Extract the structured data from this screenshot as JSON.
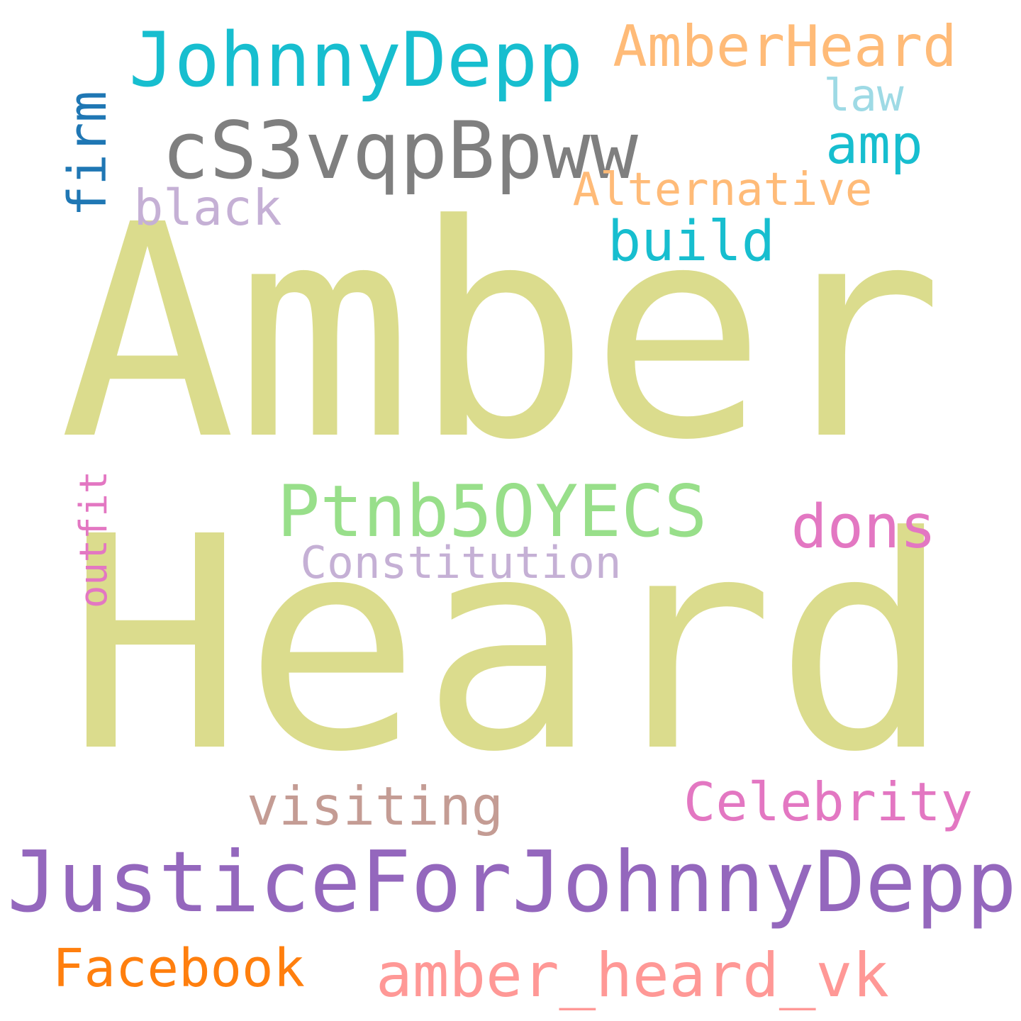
{
  "words": {
    "amber": {
      "text": "Amber",
      "color": "#dbdc8d"
    },
    "heard": {
      "text": "Heard",
      "color": "#dbdc8d"
    },
    "johnnydepp": {
      "text": "JohnnyDepp",
      "color": "#17becf"
    },
    "amberheard": {
      "text": "AmberHeard",
      "color": "#ffbb78"
    },
    "law": {
      "text": "law",
      "color": "#9edae5"
    },
    "code": {
      "text": "cS3vqpBpww",
      "color": "#7f7f7f"
    },
    "amp": {
      "text": "amp",
      "color": "#17becf"
    },
    "firm": {
      "text": "firm",
      "color": "#1f77b4"
    },
    "alternative": {
      "text": "Alternative",
      "color": "#ffbb78"
    },
    "black": {
      "text": "black",
      "color": "#c5b0d5"
    },
    "build": {
      "text": "build",
      "color": "#17becf"
    },
    "ptnb": {
      "text": "Ptnb5OYECS",
      "color": "#98df8a"
    },
    "dons": {
      "text": "dons",
      "color": "#e377c2"
    },
    "outfit": {
      "text": "outfit",
      "color": "#e377c2"
    },
    "constitution": {
      "text": "Constitution",
      "color": "#c5b0d5"
    },
    "visiting": {
      "text": "visiting",
      "color": "#c49c94"
    },
    "celebrity": {
      "text": "Celebrity",
      "color": "#e377c2"
    },
    "justice": {
      "text": "JusticeForJohnnyDepp",
      "color": "#9467bd"
    },
    "facebook": {
      "text": "Facebook",
      "color": "#ff7f0e"
    },
    "amber_heard_vk": {
      "text": "amber_heard_vk",
      "color": "#ff9896"
    }
  }
}
